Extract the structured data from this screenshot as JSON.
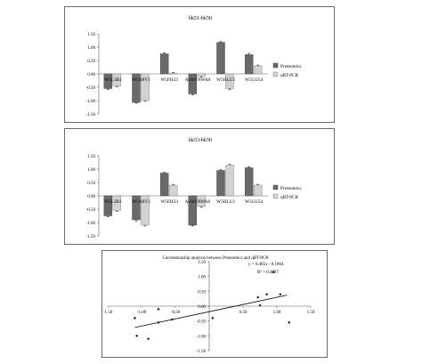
{
  "chart_data": [
    {
      "type": "bar",
      "title": "bk51-bk50",
      "categories": [
        "W5L3B3",
        "W5A8V3",
        "W5FH33",
        "A0A078WA8",
        "W5HLU3",
        "W5GU54"
      ],
      "ylim": [
        -1.5,
        1.5
      ],
      "yticks": [
        "1.50",
        "1.00",
        "0.50",
        "0.00",
        "-0.50",
        "-1.00",
        "-1.50"
      ],
      "grid": false,
      "legend": "right",
      "series": [
        {
          "name": "Proteomics",
          "values": [
            -0.55,
            -1.07,
            0.75,
            -0.75,
            1.18,
            0.72
          ],
          "errors": [
            0.04,
            0.03,
            0.04,
            0.04,
            0.03,
            0.05
          ]
        },
        {
          "name": "qRT-PCR",
          "values": [
            -0.45,
            -1.0,
            0.03,
            -0.1,
            -0.55,
            0.3
          ],
          "errors": [
            0.03,
            0.03,
            0.02,
            0.02,
            0.04,
            0.03
          ]
        }
      ]
    },
    {
      "type": "bar",
      "title": "bk53-bk50",
      "categories": [
        "W5L3B3",
        "W5A8V3",
        "W5FH33",
        "A0A078WA8",
        "W5HLU3",
        "W5GU54"
      ],
      "ylim": [
        -1.5,
        1.5
      ],
      "yticks": [
        "1.50",
        "1.00",
        "0.50",
        "0.00",
        "-0.50",
        "-1.00",
        "-1.50"
      ],
      "grid": false,
      "legend": "right",
      "series": [
        {
          "name": "Proteomics",
          "values": [
            -0.75,
            -0.9,
            0.85,
            -1.1,
            0.95,
            1.05
          ],
          "errors": [
            0.04,
            0.04,
            0.03,
            0.03,
            0.03,
            0.04
          ]
        },
        {
          "name": "qRT-PCR",
          "values": [
            -0.55,
            -1.1,
            0.4,
            -0.4,
            1.15,
            0.4
          ],
          "errors": [
            0.03,
            0.03,
            0.03,
            0.03,
            0.03,
            0.03
          ]
        }
      ]
    },
    {
      "type": "scatter",
      "title": "Correlationship analysis between Proteomics and qRT-PCR",
      "equation": "y = 0.485x - 0.1864",
      "r2": "R² = 0.4907",
      "xlim": [
        -1.5,
        1.5
      ],
      "ylim": [
        -1.5,
        1.5
      ],
      "xticks": [
        "-1.50",
        "-1.00",
        "-0.50",
        "0.00",
        "0.50",
        "1.00",
        "1.50"
      ],
      "yticks": [
        "1.50",
        "1.00",
        "0.50",
        "0.00",
        "-0.50",
        "-1.00",
        "-1.50"
      ],
      "trendline": {
        "slope": 0.485,
        "intercept": -0.1864
      },
      "points": [
        {
          "x": -1.1,
          "y": -0.4
        },
        {
          "x": -1.07,
          "y": -1.0
        },
        {
          "x": -0.9,
          "y": -1.1
        },
        {
          "x": -0.75,
          "y": -0.55
        },
        {
          "x": -0.55,
          "y": -0.45
        },
        {
          "x": -0.75,
          "y": -0.1
        },
        {
          "x": 0.05,
          "y": -0.4
        },
        {
          "x": 0.72,
          "y": 0.3
        },
        {
          "x": 0.85,
          "y": 0.4
        },
        {
          "x": 0.95,
          "y": 1.15
        },
        {
          "x": 1.05,
          "y": 0.4
        },
        {
          "x": 1.18,
          "y": -0.55
        },
        {
          "x": 0.75,
          "y": 0.03
        }
      ]
    }
  ]
}
